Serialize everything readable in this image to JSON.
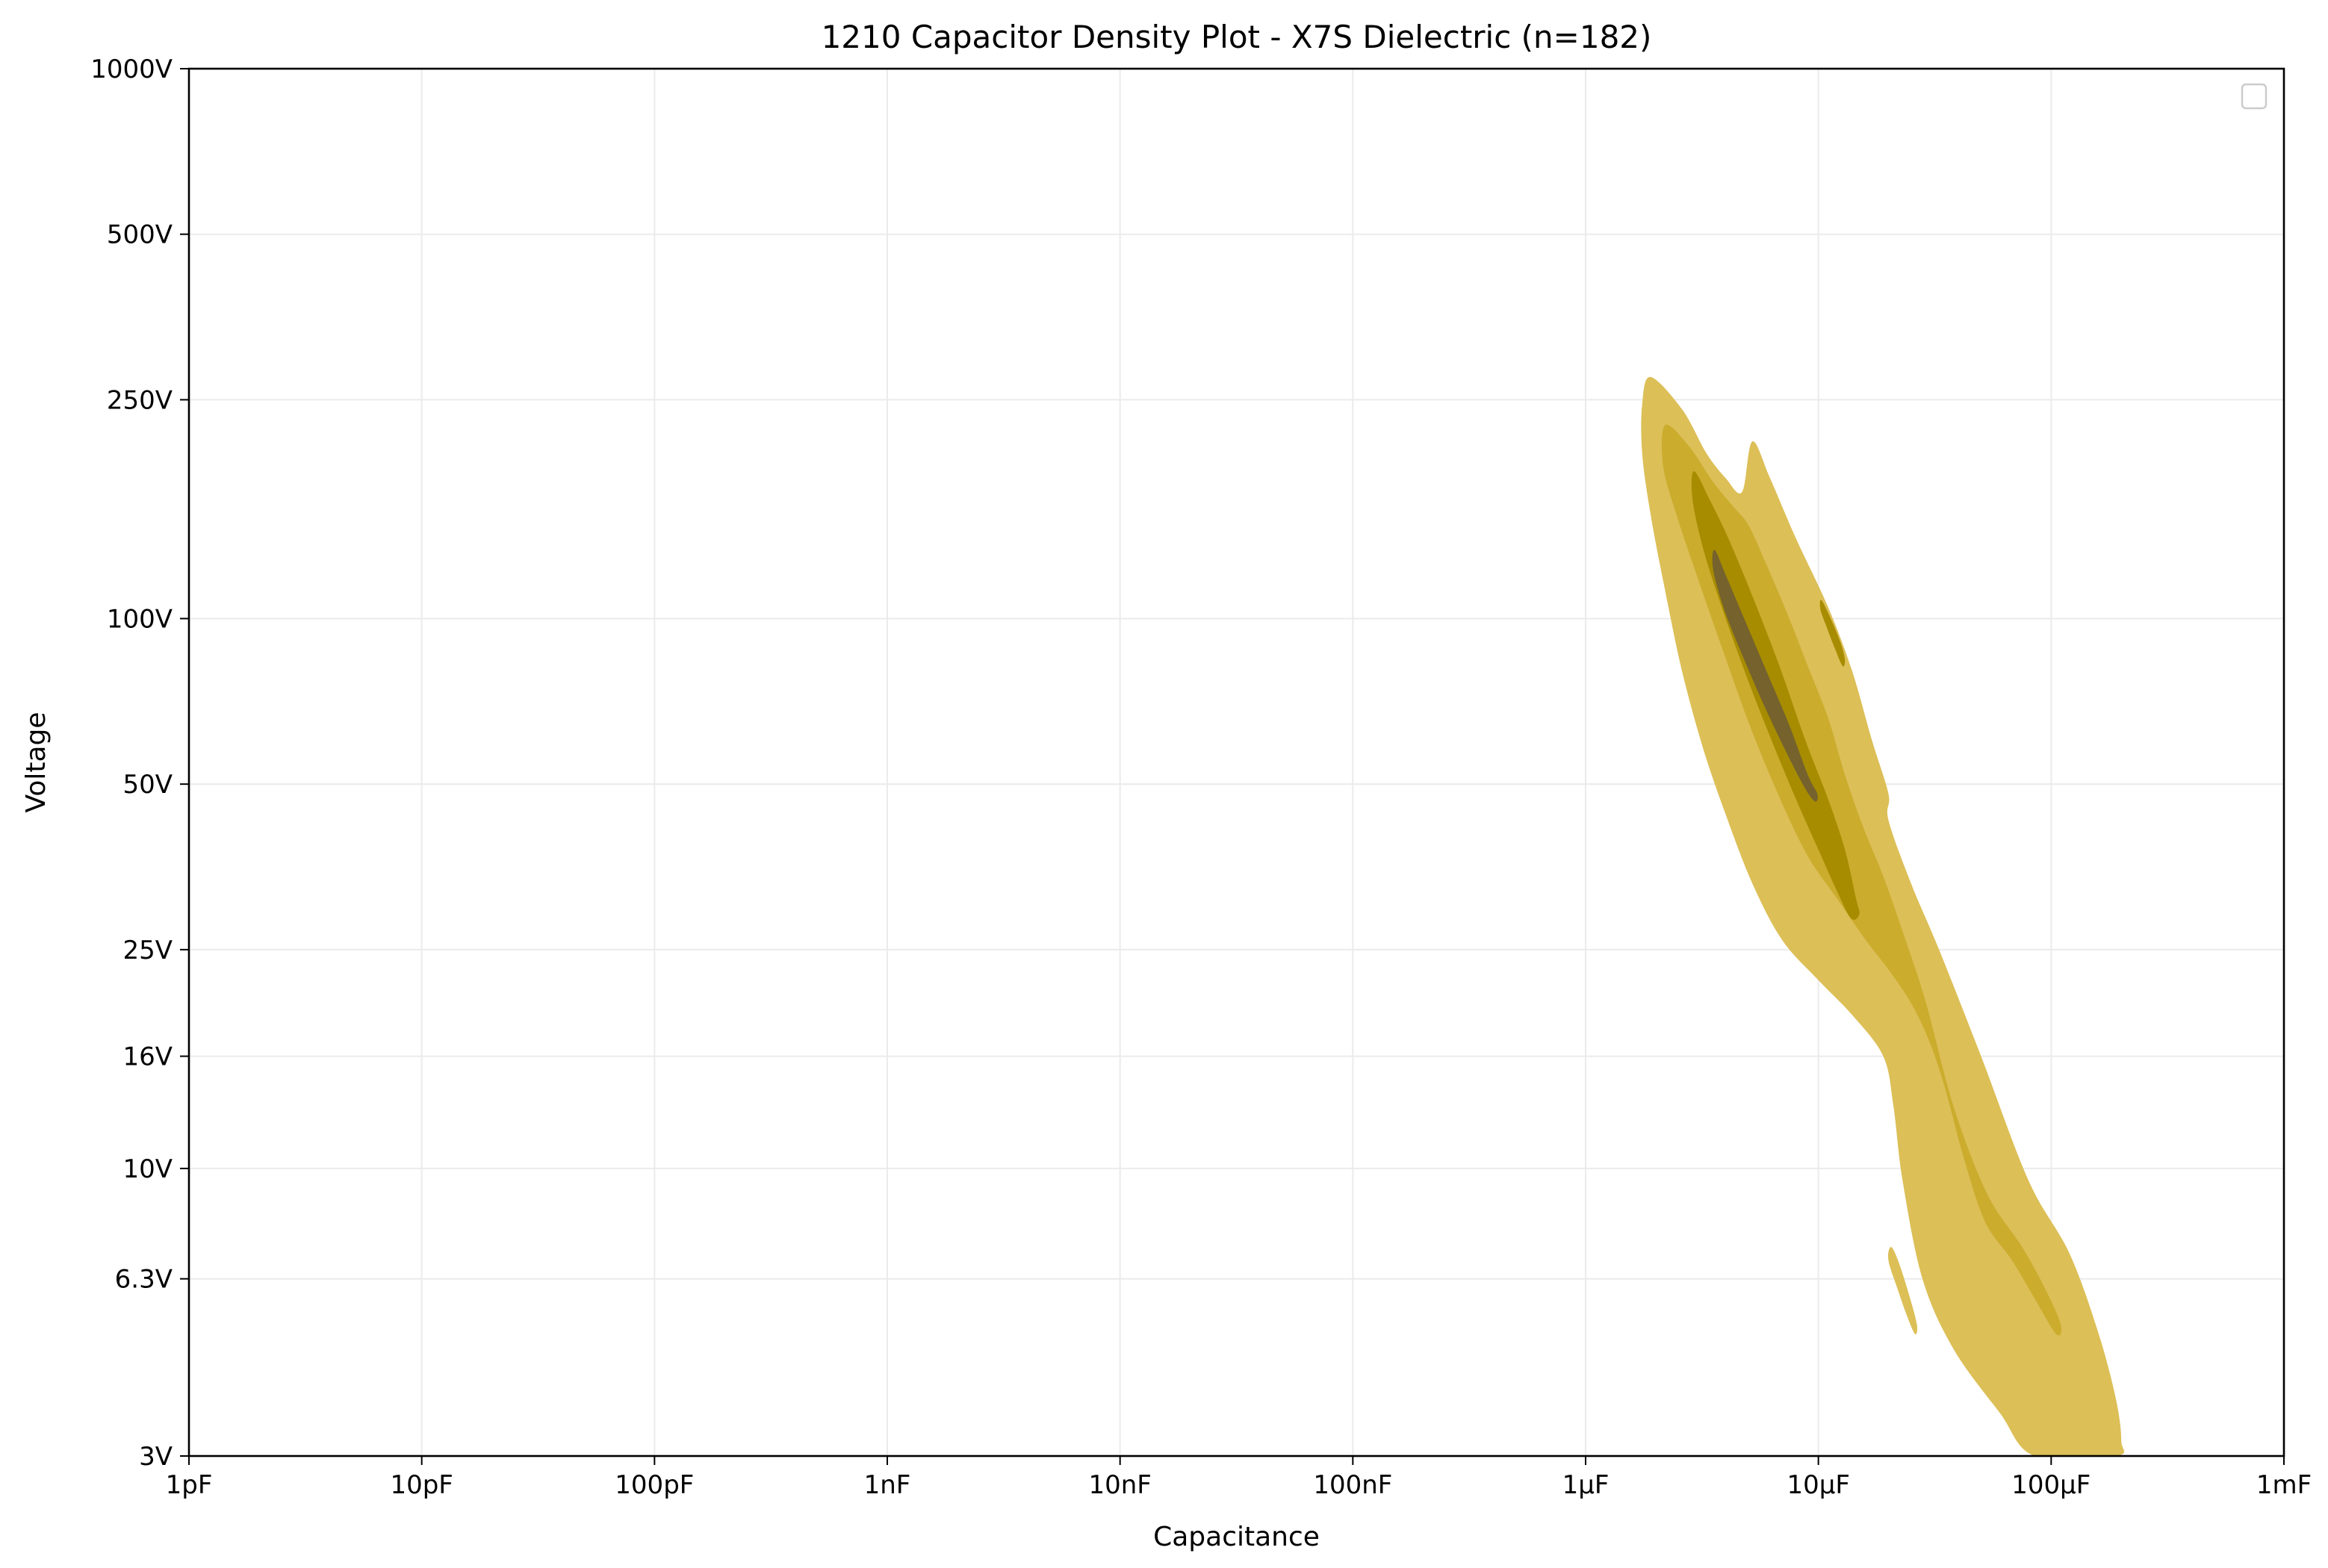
{
  "chart_data": {
    "type": "contour-density",
    "title": "1210 Capacitor Density Plot - X7S Dielectric (n=182)",
    "xlabel": "Capacitance",
    "ylabel": "Voltage",
    "x_scale": "log",
    "y_scale": "log",
    "xlim_farads": [
      1e-12,
      0.001
    ],
    "ylim_volts": [
      3,
      1000
    ],
    "grid": true,
    "legend": {
      "placement": "top-right",
      "entries": []
    },
    "x_ticks": [
      {
        "value": 1e-12,
        "label": "1pF"
      },
      {
        "value": 1e-11,
        "label": "10pF"
      },
      {
        "value": 1e-10,
        "label": "100pF"
      },
      {
        "value": 1e-09,
        "label": "1nF"
      },
      {
        "value": 1e-08,
        "label": "10nF"
      },
      {
        "value": 1e-07,
        "label": "100nF"
      },
      {
        "value": 1e-06,
        "label": "1µF"
      },
      {
        "value": 1e-05,
        "label": "10µF"
      },
      {
        "value": 0.0001,
        "label": "100µF"
      },
      {
        "value": 0.001,
        "label": "1mF"
      }
    ],
    "y_ticks": [
      {
        "value": 3,
        "label": "3V"
      },
      {
        "value": 6.3,
        "label": "6.3V"
      },
      {
        "value": 10,
        "label": "10V"
      },
      {
        "value": 16,
        "label": "16V"
      },
      {
        "value": 25,
        "label": "25V"
      },
      {
        "value": 50,
        "label": "50V"
      },
      {
        "value": 100,
        "label": "100V"
      },
      {
        "value": 250,
        "label": "250V"
      },
      {
        "value": 500,
        "label": "500V"
      },
      {
        "value": 1000,
        "label": "1000V"
      }
    ],
    "density_levels": [
      {
        "level": 1,
        "color": "#dcbf57",
        "regions": [
          [
            [
              1.9e-06,
              275
            ],
            [
              2.6e-06,
              240
            ],
            [
              3.3e-06,
              200
            ],
            [
              4e-06,
              180
            ],
            [
              4.7e-06,
              170
            ],
            [
              5.2e-06,
              210
            ],
            [
              6.2e-06,
              180
            ],
            [
              8e-06,
              140
            ],
            [
              1.1e-05,
              105
            ],
            [
              1.4e-05,
              80
            ],
            [
              1.7e-05,
              60
            ],
            [
              2e-05,
              48
            ],
            [
              2e-05,
              43
            ],
            [
              2.5e-05,
              33
            ],
            [
              3.3e-05,
              25
            ],
            [
              5e-05,
              16
            ],
            [
              8e-05,
              9.5
            ],
            [
              0.00012,
              7
            ],
            [
              0.00016,
              5
            ],
            [
              0.00019,
              3.8
            ],
            [
              0.0002,
              3.2
            ],
            [
              0.00019,
              3.0
            ],
            [
              8.5e-05,
              3.0
            ],
            [
              6e-05,
              3.6
            ],
            [
              3.8e-05,
              4.7
            ],
            [
              2.8e-05,
              6.3
            ],
            [
              2.3e-05,
              9.5
            ],
            [
              2.1e-05,
              13
            ],
            [
              1.9e-05,
              16
            ],
            [
              1.4e-05,
              19
            ],
            [
              1e-05,
              22
            ],
            [
              7e-06,
              26
            ],
            [
              5.2e-06,
              33
            ],
            [
              4e-06,
              44
            ],
            [
              3.2e-06,
              58
            ],
            [
              2.6e-06,
              80
            ],
            [
              2.2e-06,
              112
            ],
            [
              1.9e-06,
              155
            ],
            [
              1.75e-06,
              200
            ],
            [
              1.75e-06,
              245
            ]
          ],
          [
            [
              2.05e-05,
              7.2
            ],
            [
              2.2e-05,
              6.8
            ],
            [
              2.45e-05,
              5.9
            ],
            [
              2.65e-05,
              5.2
            ],
            [
              2.6e-05,
              5.0
            ],
            [
              2.4e-05,
              5.4
            ],
            [
              2.2e-05,
              6.0
            ],
            [
              2e-05,
              6.8
            ]
          ]
        ]
      },
      {
        "level": 2,
        "color": "#cbac2d",
        "regions": [
          [
            [
              2.2e-06,
              225
            ],
            [
              2.8e-06,
              205
            ],
            [
              3.5e-06,
              178
            ],
            [
              4.3e-06,
              160
            ],
            [
              5e-06,
              148
            ],
            [
              6e-06,
              125
            ],
            [
              7.5e-06,
              100
            ],
            [
              9e-06,
              82
            ],
            [
              1.1e-05,
              66
            ],
            [
              1.3e-05,
              52
            ],
            [
              1.55e-05,
              42
            ],
            [
              1.9e-05,
              34
            ],
            [
              2.3e-05,
              27
            ],
            [
              2.9e-05,
              20
            ],
            [
              3.8e-05,
              13
            ],
            [
              5.3e-05,
              9.0
            ],
            [
              7.5e-05,
              7.2
            ],
            [
              9.5e-05,
              6.0
            ],
            [
              0.00011,
              5.2
            ],
            [
              0.000105,
              5.0
            ],
            [
              8.5e-05,
              5.8
            ],
            [
              6.8e-05,
              6.8
            ],
            [
              5.2e-05,
              8.0
            ],
            [
              4.2e-05,
              10.5
            ],
            [
              3.5e-05,
              14
            ],
            [
              3e-05,
              17
            ],
            [
              2.5e-05,
              20
            ],
            [
              2e-05,
              23
            ],
            [
              1.6e-05,
              26
            ],
            [
              1.2e-05,
              31
            ],
            [
              9e-06,
              37
            ],
            [
              6.7e-06,
              48
            ],
            [
              5e-06,
              65
            ],
            [
              3.8e-06,
              90
            ],
            [
              3e-06,
              120
            ],
            [
              2.45e-06,
              155
            ],
            [
              2.15e-06,
              190
            ]
          ]
        ]
      },
      {
        "level": 3,
        "color": "#a78c00",
        "regions": [
          [
            [
              2.95e-06,
              185
            ],
            [
              3.4e-06,
              165
            ],
            [
              4.1e-06,
              140
            ],
            [
              5.2e-06,
              110
            ],
            [
              6.8e-06,
              82
            ],
            [
              8.8e-06,
              60
            ],
            [
              1.1e-05,
              47
            ],
            [
              1.3e-05,
              38
            ],
            [
              1.45e-05,
              31
            ],
            [
              1.5e-05,
              29
            ],
            [
              1.38e-05,
              28.5
            ],
            [
              1.2e-05,
              32
            ],
            [
              1e-05,
              38
            ],
            [
              8e-06,
              47
            ],
            [
              6.3e-06,
              60
            ],
            [
              5e-06,
              77
            ],
            [
              4e-06,
              100
            ],
            [
              3.3e-06,
              128
            ],
            [
              2.95e-06,
              155
            ],
            [
              2.85e-06,
              175
            ]
          ],
          [
            [
              1.03e-05,
              108
            ],
            [
              1.13e-05,
              100
            ],
            [
              1.25e-05,
              90
            ],
            [
              1.3e-05,
              84
            ],
            [
              1.27e-05,
              82
            ],
            [
              1.18e-05,
              88
            ],
            [
              1.08e-05,
              97
            ],
            [
              1.02e-05,
              104
            ]
          ]
        ]
      },
      {
        "level": 4,
        "color": "#75622d",
        "regions": [
          [
            [
              3.6e-06,
              133
            ],
            [
              4e-06,
              120
            ],
            [
              4.8e-06,
              100
            ],
            [
              6e-06,
              80
            ],
            [
              7.5e-06,
              64
            ],
            [
              9e-06,
              52
            ],
            [
              9.9e-06,
              48
            ],
            [
              9.7e-06,
              46.5
            ],
            [
              8.8e-06,
              49
            ],
            [
              7.3e-06,
              57
            ],
            [
              5.8e-06,
              70
            ],
            [
              4.7e-06,
              86
            ],
            [
              4e-06,
              102
            ],
            [
              3.6e-06,
              118
            ],
            [
              3.5e-06,
              128
            ]
          ]
        ]
      }
    ]
  }
}
